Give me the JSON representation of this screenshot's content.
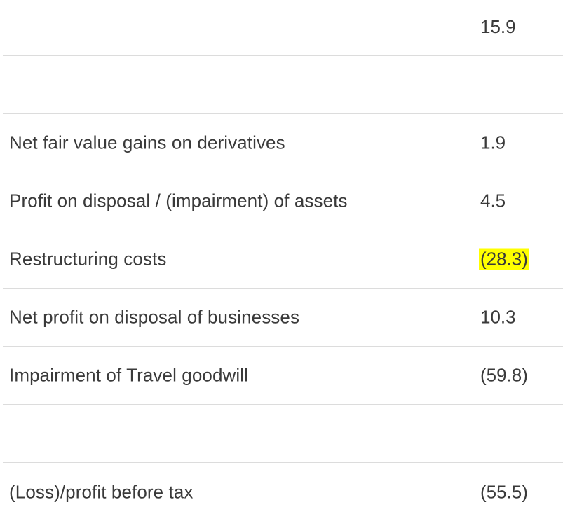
{
  "rows": [
    {
      "label": "",
      "value": "15.9",
      "highlight": false
    },
    {
      "label": "",
      "value": "",
      "highlight": false
    },
    {
      "label": "Net fair value gains on derivatives",
      "value": "1.9",
      "highlight": false
    },
    {
      "label": "Profit on disposal / (impairment) of assets",
      "value": "4.5",
      "highlight": false
    },
    {
      "label": "Restructuring costs",
      "value": "(28.3)",
      "highlight": true
    },
    {
      "label": "Net profit on disposal of businesses",
      "value": "10.3",
      "highlight": false
    },
    {
      "label": "Impairment of Travel goodwill",
      "value": "(59.8)",
      "highlight": false
    },
    {
      "label": "",
      "value": "",
      "highlight": false
    },
    {
      "label": "(Loss)/profit before tax",
      "value": "(55.5)",
      "highlight": false
    }
  ],
  "colors": {
    "text": "#3a3a3a",
    "divider": "#dcdcdc",
    "highlight": "#ffff00"
  }
}
